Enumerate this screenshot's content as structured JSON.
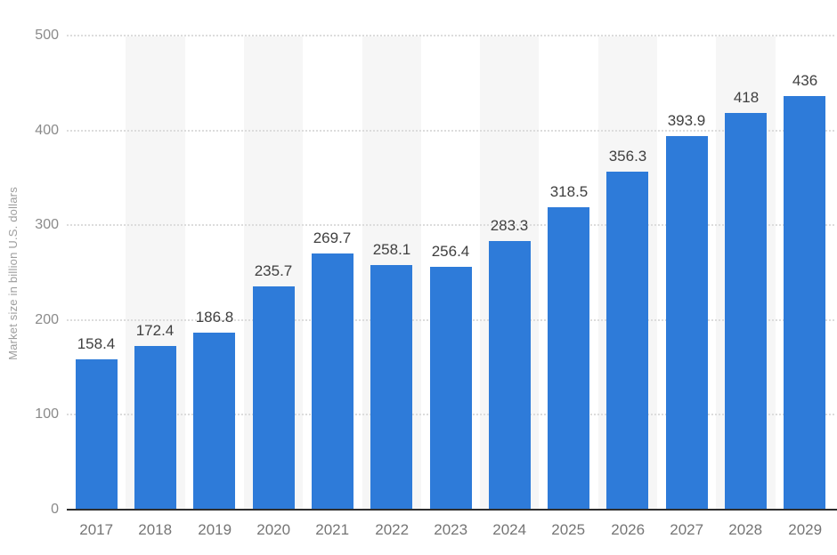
{
  "chart_data": {
    "type": "bar",
    "title": "",
    "xlabel": "",
    "ylabel": "Market size in billion U.S. dollars",
    "categories": [
      "2017",
      "2018",
      "2019",
      "2020",
      "2021",
      "2022",
      "2023",
      "2024",
      "2025",
      "2026",
      "2027",
      "2028",
      "2029"
    ],
    "values": [
      158.4,
      172.4,
      186.8,
      235.7,
      269.7,
      258.1,
      256.4,
      283.3,
      318.5,
      356.3,
      393.9,
      418,
      436
    ],
    "value_labels": [
      "158.4",
      "172.4",
      "186.8",
      "235.7",
      "269.7",
      "258.1",
      "256.4",
      "283.3",
      "318.5",
      "356.3",
      "393.9",
      "418",
      "436"
    ],
    "yticks": [
      0,
      100,
      200,
      300,
      400,
      500
    ],
    "ylim": [
      0,
      500
    ],
    "grid": "horizontal-dotted",
    "legend": "none",
    "band_pattern": "alternating-even-categories",
    "colors": {
      "bar": "#2e7bd9",
      "band": "#f6f6f6",
      "gridline": "#dcdcdc",
      "axis_line": "#2e2e2e",
      "value_label": "#404040",
      "tick_label": "#757575",
      "y_tick_label": "#8a8a8a",
      "y_axis_title": "#9e9e9e",
      "background": "#ffffff"
    }
  }
}
